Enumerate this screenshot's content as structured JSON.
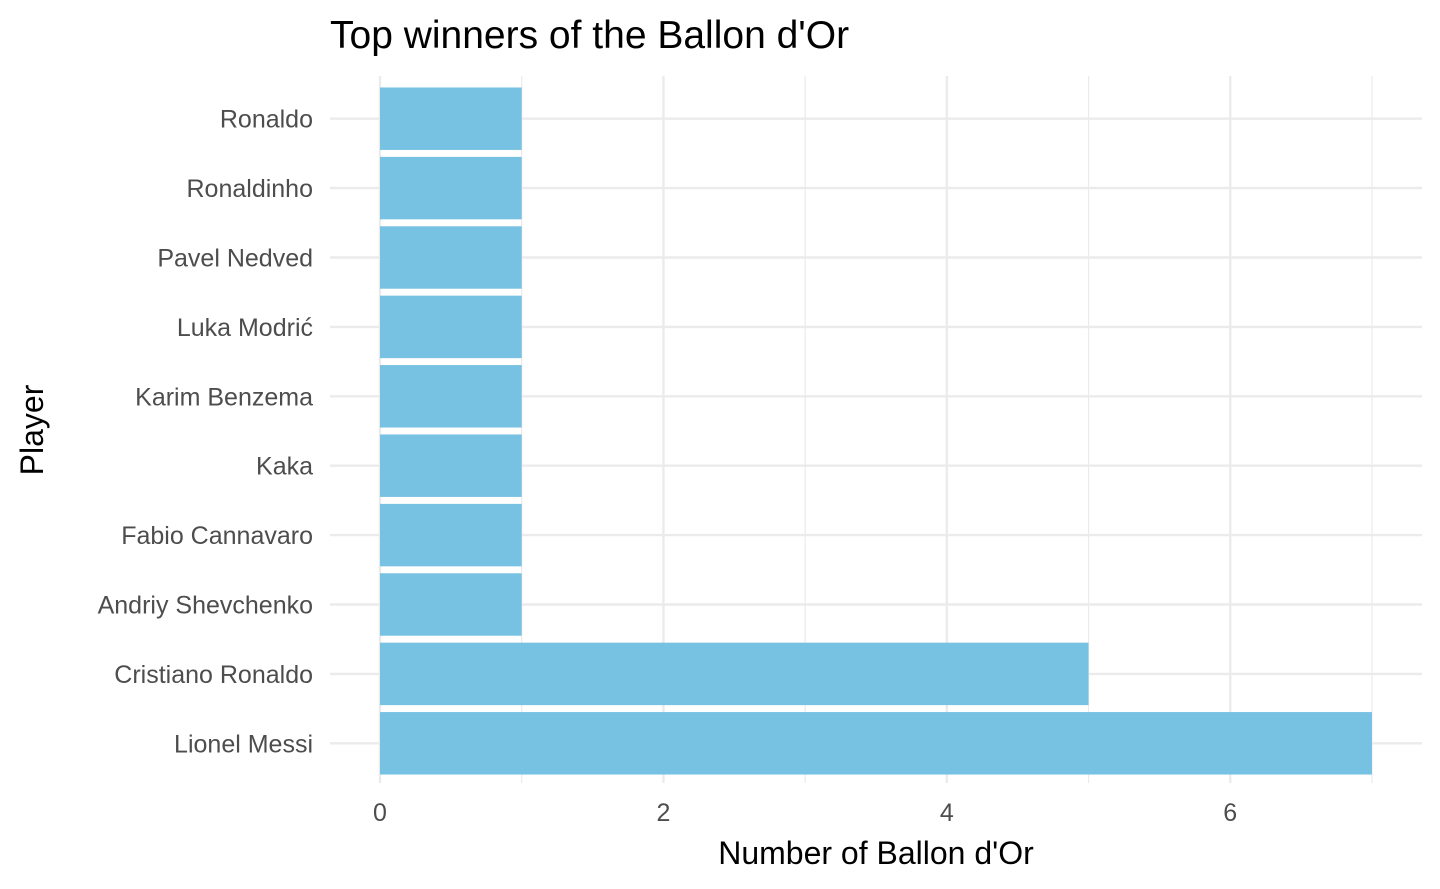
{
  "chart_data": {
    "type": "bar",
    "orientation": "horizontal",
    "title": "Top winners of the Ballon d'Or",
    "xlabel": "Number of Ballon d'Or",
    "ylabel": "Player",
    "categories": [
      "Lionel Messi",
      "Cristiano Ronaldo",
      "Andriy Shevchenko",
      "Fabio Cannavaro",
      "Kaka",
      "Karim Benzema",
      "Luka Modrić",
      "Pavel Nedved",
      "Ronaldinho",
      "Ronaldo"
    ],
    "values": [
      7,
      5,
      1,
      1,
      1,
      1,
      1,
      1,
      1,
      1
    ],
    "xticks": [
      "0",
      "2",
      "4",
      "6"
    ],
    "xlim": [
      0,
      7.35
    ],
    "bar_color": "#77C1E3",
    "grid": true,
    "legend": "none"
  }
}
